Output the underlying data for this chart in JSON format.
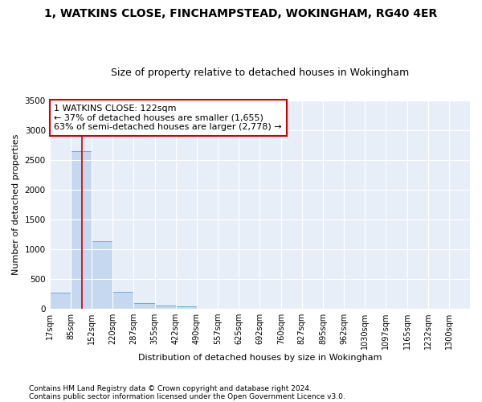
{
  "title1": "1, WATKINS CLOSE, FINCHAMPSTEAD, WOKINGHAM, RG40 4ER",
  "title2": "Size of property relative to detached houses in Wokingham",
  "xlabel": "Distribution of detached houses by size in Wokingham",
  "ylabel": "Number of detached properties",
  "footnote1": "Contains HM Land Registry data © Crown copyright and database right 2024.",
  "footnote2": "Contains public sector information licensed under the Open Government Licence v3.0.",
  "bar_color": "#c5d8f0",
  "bar_edge_color": "#6baed6",
  "bg_color": "#e8eef8",
  "grid_color": "#d0d8e8",
  "red_line_color": "#cc0000",
  "annotation_line1": "1 WATKINS CLOSE: 122sqm",
  "annotation_line2": "← 37% of detached houses are smaller (1,655)",
  "annotation_line3": "63% of semi-detached houses are larger (2,778) →",
  "property_size_sqm": 122,
  "bin_edges": [
    17,
    85,
    152,
    220,
    287,
    355,
    422,
    490,
    557,
    625,
    692,
    760,
    827,
    895,
    962,
    1030,
    1097,
    1165,
    1232,
    1300,
    1367
  ],
  "bar_heights": [
    270,
    2640,
    1140,
    285,
    90,
    55,
    35,
    0,
    0,
    0,
    0,
    0,
    0,
    0,
    0,
    0,
    0,
    0,
    0,
    0
  ],
  "ylim": [
    0,
    3500
  ],
  "yticks": [
    0,
    500,
    1000,
    1500,
    2000,
    2500,
    3000,
    3500
  ],
  "title1_fontsize": 10,
  "title2_fontsize": 9,
  "xlabel_fontsize": 8,
  "ylabel_fontsize": 8,
  "tick_fontsize": 7,
  "annotation_fontsize": 8,
  "footnote_fontsize": 6.5
}
